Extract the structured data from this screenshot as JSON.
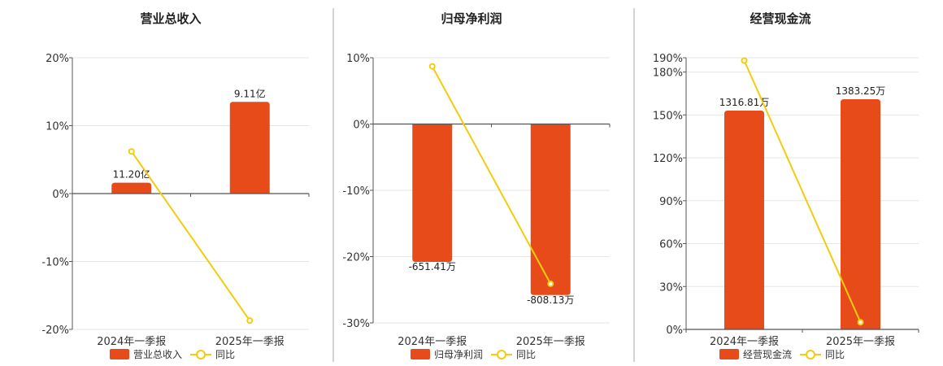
{
  "colors": {
    "bar": "#E84B1A",
    "line": "#F2CC0F",
    "grid": "#E6E6E6",
    "axis": "#555555",
    "divider": "#AAAAAA"
  },
  "chart_data": [
    {
      "type": "bar",
      "title": "营业总收入",
      "categories": [
        "2024年一季报",
        "2025年一季报"
      ],
      "series": [
        {
          "name": "营业总收入",
          "type": "bar",
          "values": [
            1.6,
            13.5
          ],
          "data_labels": [
            "11.20亿",
            "9.11亿"
          ]
        },
        {
          "name": "同比",
          "type": "line",
          "values": [
            6.2,
            -18.7
          ]
        }
      ],
      "ylim": [
        -20,
        20
      ],
      "yticks": [
        "20%",
        "10%",
        "0%",
        "-10%",
        "-20%"
      ],
      "yticks_values": [
        20,
        10,
        0,
        -10,
        -20
      ],
      "legend": "bottom",
      "grid": true
    },
    {
      "type": "bar",
      "title": "归母净利润",
      "categories": [
        "2024年一季报",
        "2025年一季报"
      ],
      "series": [
        {
          "name": "归母净利润",
          "type": "bar",
          "values": [
            -20.8,
            -25.8
          ],
          "data_labels": [
            "-651.41万",
            "-808.13万"
          ]
        },
        {
          "name": "同比",
          "type": "line",
          "values": [
            8.7,
            -24.1
          ]
        }
      ],
      "ylim": [
        -30,
        10
      ],
      "yticks": [
        "10%",
        "0%",
        "-10%",
        "-20%",
        "-30%"
      ],
      "yticks_values": [
        10,
        0,
        -10,
        -20,
        -30
      ],
      "legend": "bottom",
      "grid": true
    },
    {
      "type": "bar",
      "title": "经营现金流",
      "categories": [
        "2024年一季报",
        "2025年一季报"
      ],
      "series": [
        {
          "name": "经营现金流",
          "type": "bar",
          "values": [
            153,
            161
          ],
          "data_labels": [
            "1316.81万",
            "1383.25万"
          ]
        },
        {
          "name": "同比",
          "type": "line",
          "values": [
            188,
            5
          ]
        }
      ],
      "ylim": [
        0,
        190
      ],
      "yticks": [
        "190%",
        "180%",
        "150%",
        "120%",
        "90%",
        "60%",
        "30%",
        "0%"
      ],
      "yticks_values": [
        190,
        180,
        150,
        120,
        90,
        60,
        30,
        0
      ],
      "legend": "bottom",
      "grid": true
    }
  ]
}
